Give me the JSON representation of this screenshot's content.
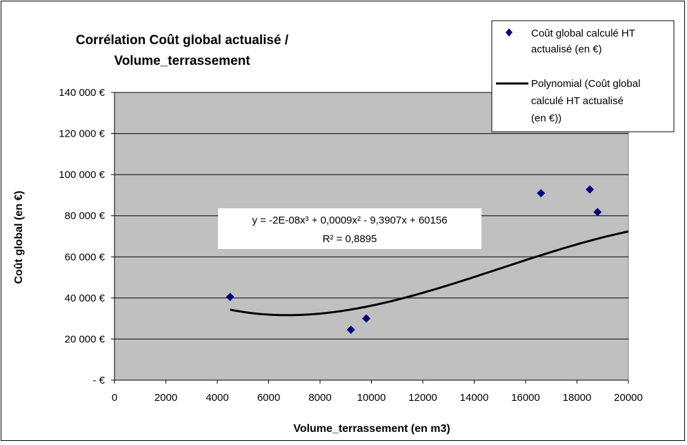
{
  "chart_data": {
    "type": "scatter",
    "title_line1": "Corrélation Coût global actualisé /",
    "title_line2": "Volume_terrassement",
    "xlabel": "Volume_terrassement (en m3)",
    "ylabel": "Coût global (en €)",
    "xlim": [
      0,
      20000
    ],
    "ylim": [
      0,
      140000
    ],
    "x_ticks": [
      0,
      2000,
      4000,
      6000,
      8000,
      10000,
      12000,
      14000,
      16000,
      18000,
      20000
    ],
    "x_tick_labels": [
      "0",
      "2000",
      "4000",
      "6000",
      "8000",
      "10000",
      "12000",
      "14000",
      "16000",
      "18000",
      "20000"
    ],
    "y_ticks": [
      0,
      20000,
      40000,
      60000,
      80000,
      100000,
      120000,
      140000
    ],
    "y_tick_labels": [
      "-      €",
      "20 000 €",
      "40 000 €",
      "60 000 €",
      "80 000 €",
      "100 000 €",
      "120 000 €",
      "140 000 €"
    ],
    "grid": true,
    "plot_background": "#c0c0c0",
    "legend_position": "top-right",
    "series": [
      {
        "name": "Coût global  calculé HT actualisé (en €)",
        "legend_lines": [
          "Coût global  calculé HT",
          "actualisé (en €)"
        ],
        "kind": "points",
        "marker": "diamond",
        "color": "#000080",
        "x": [
          4500,
          9200,
          9800,
          16600,
          18500,
          18800
        ],
        "y": [
          40500,
          24500,
          30000,
          91000,
          92800,
          81800
        ]
      },
      {
        "name": "Polynomial (Coût global calculé HT actualisé (en €))",
        "legend_lines": [
          "Polynomial (Coût global",
          "calculé HT actualisé",
          "(en €))"
        ],
        "kind": "trendline",
        "color": "#000000",
        "x_range": [
          4500,
          20000
        ],
        "coefficients": {
          "a3": -2e-08,
          "a2": 0.0009,
          "a1": -9.3907,
          "a0": 60156
        }
      }
    ],
    "trendline_equation": "y = -2E-08x³ + 0,0009x² - 9,3907x + 60156",
    "r_squared": "R² = 0,8895"
  }
}
